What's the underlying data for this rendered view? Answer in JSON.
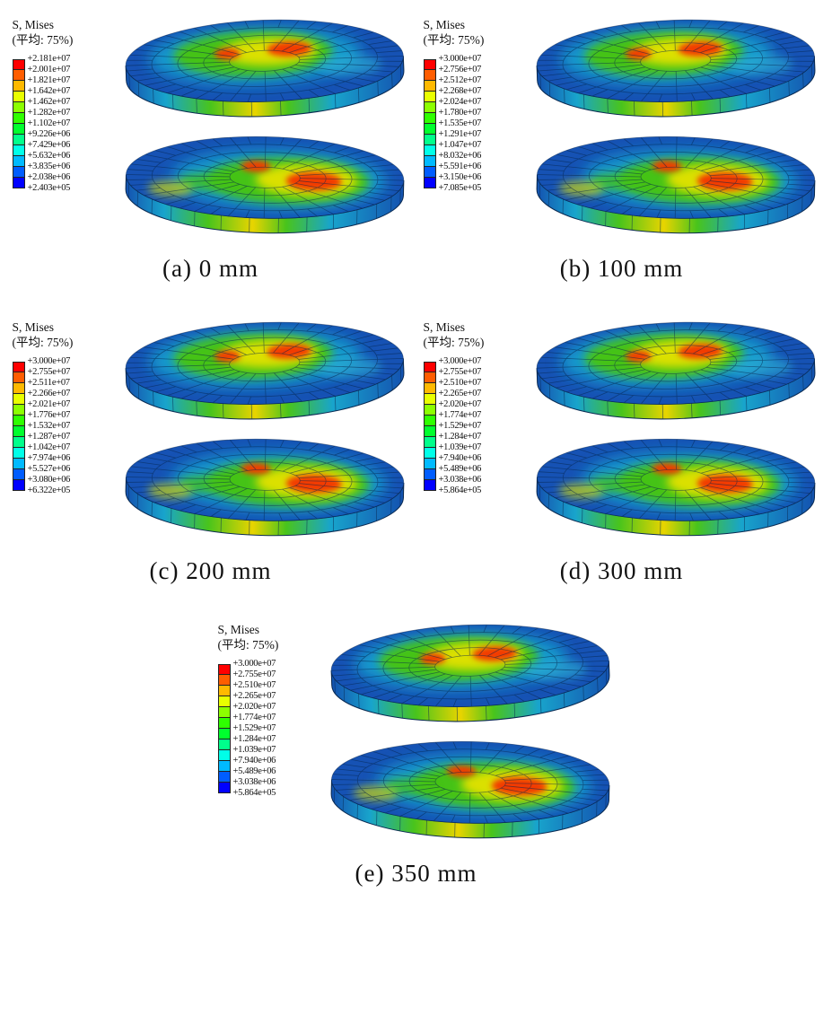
{
  "figure": {
    "legend_title_line1": "S, Mises",
    "legend_title_line2": "(平均: 75%)",
    "colorbar_colors": [
      "#ff0000",
      "#ff5d00",
      "#ffb900",
      "#e9ff00",
      "#8cff00",
      "#2fff00",
      "#00ff2e",
      "#00ff8b",
      "#00ffe8",
      "#00baff",
      "#005dff",
      "#0000ff"
    ],
    "panels": [
      {
        "id": "a",
        "caption": "(a) 0 mm",
        "legend_values": [
          "+2.181e+07",
          "+2.001e+07",
          "+1.821e+07",
          "+1.642e+07",
          "+1.462e+07",
          "+1.282e+07",
          "+1.102e+07",
          "+9.226e+06",
          "+7.429e+06",
          "+5.632e+06",
          "+3.835e+06",
          "+2.038e+06",
          "+2.403e+05"
        ]
      },
      {
        "id": "b",
        "caption": "(b) 100 mm",
        "legend_values": [
          "+3.000e+07",
          "+2.756e+07",
          "+2.512e+07",
          "+2.268e+07",
          "+2.024e+07",
          "+1.780e+07",
          "+1.535e+07",
          "+1.291e+07",
          "+1.047e+07",
          "+8.032e+06",
          "+5.591e+06",
          "+3.150e+06",
          "+7.085e+05"
        ]
      },
      {
        "id": "c",
        "caption": "(c) 200 mm",
        "legend_values": [
          "+3.000e+07",
          "+2.755e+07",
          "+2.511e+07",
          "+2.266e+07",
          "+2.021e+07",
          "+1.776e+07",
          "+1.532e+07",
          "+1.287e+07",
          "+1.042e+07",
          "+7.974e+06",
          "+5.527e+06",
          "+3.080e+06",
          "+6.322e+05"
        ]
      },
      {
        "id": "d",
        "caption": "(d) 300 mm",
        "legend_values": [
          "+3.000e+07",
          "+2.755e+07",
          "+2.510e+07",
          "+2.265e+07",
          "+2.020e+07",
          "+1.774e+07",
          "+1.529e+07",
          "+1.284e+07",
          "+1.039e+07",
          "+7.940e+06",
          "+5.489e+06",
          "+3.038e+06",
          "+5.864e+05"
        ]
      },
      {
        "id": "e",
        "caption": "(e) 350 mm",
        "legend_values": [
          "+3.000e+07",
          "+2.755e+07",
          "+2.510e+07",
          "+2.265e+07",
          "+2.020e+07",
          "+1.774e+07",
          "+1.529e+07",
          "+1.284e+07",
          "+1.039e+07",
          "+7.940e+06",
          "+5.489e+06",
          "+3.038e+06",
          "+5.864e+05"
        ]
      }
    ]
  }
}
